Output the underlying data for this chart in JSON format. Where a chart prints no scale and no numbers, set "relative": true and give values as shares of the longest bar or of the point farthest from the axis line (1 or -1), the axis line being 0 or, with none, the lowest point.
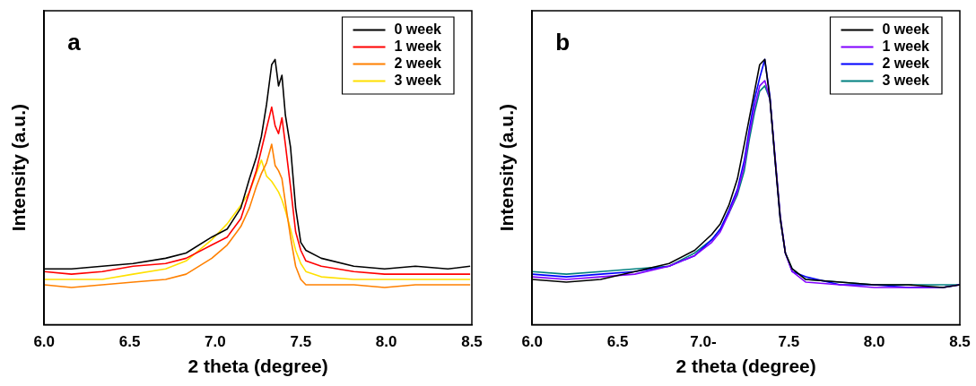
{
  "chart_data": [
    {
      "type": "line",
      "relative": true,
      "xlabel": "2 theta (degree)",
      "ylabel": "Intensity (a.u.)",
      "annotations": [
        "a"
      ],
      "legend": "top right",
      "grid": false,
      "marker": "none",
      "xlim": [
        6.0,
        8.5
      ],
      "xticks": [
        {
          "value": 6,
          "label": "6.0"
        },
        {
          "value": 6.5,
          "label": "6.5"
        },
        {
          "value": 7,
          "label": "7.0"
        },
        {
          "value": 7.5,
          "label": "7.5"
        },
        {
          "value": 8,
          "label": "8.0"
        },
        {
          "value": 8.5,
          "label": "8.5"
        }
      ],
      "x": [
        6.0,
        6.16,
        6.34,
        6.52,
        6.71,
        6.83,
        6.98,
        7.07,
        7.15,
        7.2,
        7.24,
        7.27,
        7.3,
        7.33,
        7.35,
        7.37,
        7.39,
        7.41,
        7.44,
        7.47,
        7.5,
        7.53,
        7.62,
        7.81,
        7.99,
        8.17,
        8.36,
        8.49
      ],
      "series": [
        {
          "name": "0 week",
          "color": "#000000",
          "values": [
            0.21,
            0.21,
            0.22,
            0.23,
            0.25,
            0.27,
            0.33,
            0.36,
            0.44,
            0.55,
            0.63,
            0.71,
            0.83,
            0.98,
            1.0,
            0.9,
            0.94,
            0.79,
            0.67,
            0.44,
            0.31,
            0.28,
            0.25,
            0.22,
            0.21,
            0.22,
            0.21,
            0.22
          ]
        },
        {
          "name": "1 week",
          "color": "#ff0000",
          "values": [
            0.2,
            0.19,
            0.2,
            0.22,
            0.23,
            0.25,
            0.3,
            0.33,
            0.4,
            0.5,
            0.58,
            0.66,
            0.74,
            0.82,
            0.75,
            0.72,
            0.78,
            0.68,
            0.52,
            0.35,
            0.28,
            0.24,
            0.22,
            0.2,
            0.19,
            0.19,
            0.19,
            0.19
          ]
        },
        {
          "name": "2 week",
          "color": "#ff8000",
          "values": [
            0.15,
            0.14,
            0.15,
            0.16,
            0.17,
            0.19,
            0.25,
            0.3,
            0.37,
            0.44,
            0.52,
            0.57,
            0.61,
            0.68,
            0.6,
            0.58,
            0.55,
            0.46,
            0.33,
            0.22,
            0.17,
            0.15,
            0.15,
            0.15,
            0.14,
            0.15,
            0.15,
            0.15
          ]
        },
        {
          "name": "3 week",
          "color": "#ffe000",
          "values": [
            0.17,
            0.17,
            0.17,
            0.19,
            0.21,
            0.24,
            0.32,
            0.38,
            0.45,
            0.5,
            0.57,
            0.62,
            0.56,
            0.54,
            0.52,
            0.5,
            0.47,
            0.43,
            0.36,
            0.28,
            0.23,
            0.2,
            0.18,
            0.17,
            0.17,
            0.17,
            0.17,
            0.17
          ]
        }
      ]
    },
    {
      "type": "line",
      "relative": true,
      "xlabel": "2 theta (degree)",
      "ylabel": "Intensity (a.u.)",
      "annotations": [
        "b"
      ],
      "legend": "top right",
      "grid": false,
      "marker": "none",
      "xlim": [
        6.0,
        8.5
      ],
      "xticks": [
        {
          "value": 6,
          "label": "6.0"
        },
        {
          "value": 6.5,
          "label": "6.5"
        },
        {
          "value": 7,
          "label": "7.0-"
        },
        {
          "value": 7.5,
          "label": "7.5"
        },
        {
          "value": 8,
          "label": "8.0"
        },
        {
          "value": 8.5,
          "label": "8.5"
        }
      ],
      "x": [
        6.0,
        6.2,
        6.4,
        6.6,
        6.8,
        6.95,
        7.05,
        7.1,
        7.15,
        7.2,
        7.24,
        7.27,
        7.3,
        7.33,
        7.36,
        7.39,
        7.42,
        7.45,
        7.48,
        7.52,
        7.6,
        7.8,
        8.0,
        8.2,
        8.4,
        8.5
      ],
      "series": [
        {
          "name": "0 week",
          "color": "#000000",
          "values": [
            0.17,
            0.16,
            0.17,
            0.2,
            0.23,
            0.28,
            0.34,
            0.38,
            0.45,
            0.55,
            0.68,
            0.78,
            0.88,
            0.98,
            1.0,
            0.85,
            0.62,
            0.4,
            0.27,
            0.21,
            0.17,
            0.16,
            0.15,
            0.15,
            0.14,
            0.15
          ]
        },
        {
          "name": "1 week",
          "color": "#8000ff",
          "values": [
            0.18,
            0.17,
            0.18,
            0.19,
            0.22,
            0.26,
            0.31,
            0.35,
            0.42,
            0.5,
            0.6,
            0.72,
            0.82,
            0.9,
            0.92,
            0.85,
            0.63,
            0.41,
            0.27,
            0.2,
            0.16,
            0.15,
            0.14,
            0.14,
            0.14,
            0.15
          ]
        },
        {
          "name": "2 week",
          "color": "#0000ff",
          "values": [
            0.19,
            0.18,
            0.19,
            0.2,
            0.22,
            0.26,
            0.32,
            0.36,
            0.43,
            0.51,
            0.62,
            0.74,
            0.85,
            0.93,
            1.0,
            0.86,
            0.62,
            0.4,
            0.27,
            0.2,
            0.18,
            0.15,
            0.15,
            0.14,
            0.14,
            0.15
          ]
        },
        {
          "name": "3 week",
          "color": "#008080",
          "values": [
            0.2,
            0.19,
            0.2,
            0.21,
            0.22,
            0.27,
            0.32,
            0.36,
            0.42,
            0.49,
            0.58,
            0.7,
            0.8,
            0.88,
            0.9,
            0.85,
            0.63,
            0.41,
            0.27,
            0.21,
            0.17,
            0.16,
            0.15,
            0.15,
            0.15,
            0.15
          ]
        }
      ]
    }
  ]
}
